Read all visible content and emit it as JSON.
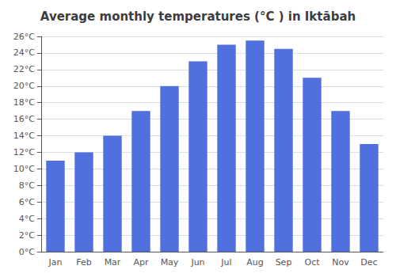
{
  "chart_data": {
    "type": "bar",
    "title": "Average monthly temperatures (°C ) in Iktābah",
    "categories": [
      "Jan",
      "Feb",
      "Mar",
      "Apr",
      "May",
      "Jun",
      "Jul",
      "Aug",
      "Sep",
      "Oct",
      "Nov",
      "Dec"
    ],
    "values": [
      11,
      12,
      14,
      17,
      20,
      23,
      25,
      25.5,
      24.5,
      21,
      17,
      13
    ],
    "ylim": [
      0,
      26
    ],
    "yticks": [
      {
        "value": 0,
        "label": "0°C"
      },
      {
        "value": 2,
        "label": "2°C"
      },
      {
        "value": 4,
        "label": "4°C"
      },
      {
        "value": 6,
        "label": "6°C"
      },
      {
        "value": 8,
        "label": "8°C"
      },
      {
        "value": 10,
        "label": "10°C"
      },
      {
        "value": 12,
        "label": "12°C"
      },
      {
        "value": 14,
        "label": "14°C"
      },
      {
        "value": 16,
        "label": "16°C"
      },
      {
        "value": 18,
        "label": "18°C"
      },
      {
        "value": 20,
        "label": "20°C"
      },
      {
        "value": 22,
        "label": "22°C"
      },
      {
        "value": 24,
        "label": "24°C"
      },
      {
        "value": 26,
        "label": "26°C"
      }
    ],
    "grid": true
  }
}
